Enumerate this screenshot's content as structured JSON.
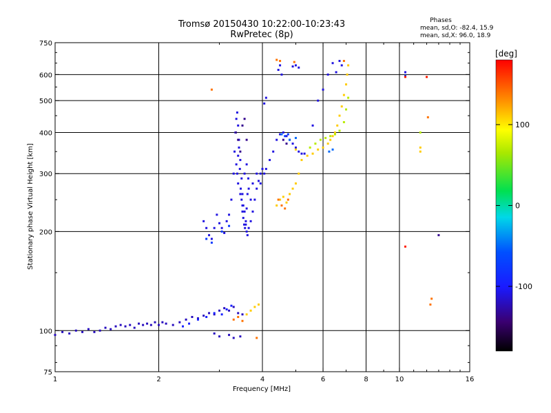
{
  "chart_data": {
    "type": "scatter",
    "title": "Tromsø 20150430 10:22:00-10:23:43",
    "subtitle": "RwPretec (8p)",
    "stats": {
      "heading": "Phases",
      "line1": "mean, sd,O: -82.4, 15.9",
      "line2": "mean, sd,X:  96.0, 18.9"
    },
    "xlabel": "Frequency [MHz]",
    "ylabel": "Stationary phase Virtual Height [km]",
    "xscale": "log",
    "yscale": "log",
    "xlim": [
      1,
      16
    ],
    "ylim": [
      75,
      750
    ],
    "xticks": [
      1,
      2,
      4,
      6,
      8,
      10,
      16
    ],
    "xtick_labels": [
      "1",
      "2",
      "4",
      "6",
      "8",
      "10",
      "16"
    ],
    "xgrid": [
      2,
      4,
      6,
      8,
      10
    ],
    "yticks": [
      75,
      100,
      200,
      300,
      400,
      500,
      600,
      750
    ],
    "ytick_labels": [
      "75",
      "100",
      "200",
      "300",
      "400",
      "500",
      "600",
      "750"
    ],
    "ygrid": [
      100,
      200,
      300,
      400,
      500,
      600
    ],
    "colorbar": {
      "label": "[deg]",
      "range": [
        -180,
        180
      ],
      "ticks": [
        100,
        0,
        -100
      ],
      "tick_labels": [
        "100",
        "0",
        "-100"
      ]
    },
    "series": [
      {
        "phase": -120,
        "points": [
          [
            1.0,
            97
          ],
          [
            1.05,
            99
          ],
          [
            1.1,
            98
          ],
          [
            1.15,
            100
          ],
          [
            1.2,
            99
          ],
          [
            1.25,
            101
          ],
          [
            1.3,
            99
          ],
          [
            1.35,
            100
          ],
          [
            1.4,
            102
          ],
          [
            1.45,
            101
          ],
          [
            1.5,
            103
          ],
          [
            1.55,
            104
          ],
          [
            1.6,
            103
          ],
          [
            1.65,
            104
          ],
          [
            1.7,
            102
          ],
          [
            1.75,
            105
          ],
          [
            1.8,
            104
          ],
          [
            1.85,
            105
          ],
          [
            1.9,
            104
          ],
          [
            1.95,
            106
          ],
          [
            2.0,
            104
          ],
          [
            2.05,
            106
          ],
          [
            2.1,
            105
          ],
          [
            2.2,
            104
          ],
          [
            2.3,
            106
          ],
          [
            2.4,
            108
          ],
          [
            2.5,
            110
          ],
          [
            2.6,
            109
          ],
          [
            2.7,
            111
          ],
          [
            2.8,
            113
          ],
          [
            2.9,
            112
          ],
          [
            3.0,
            115
          ],
          [
            3.1,
            117
          ],
          [
            3.2,
            115
          ],
          [
            3.3,
            118
          ],
          [
            3.4,
            113
          ],
          [
            3.5,
            112
          ],
          [
            2.9,
            98
          ],
          [
            3.0,
            96
          ],
          [
            3.2,
            97
          ],
          [
            3.3,
            95
          ],
          [
            3.45,
            96
          ]
        ]
      },
      {
        "phase": -95,
        "points": [
          [
            2.6,
            108
          ],
          [
            2.75,
            110
          ],
          [
            2.9,
            113
          ],
          [
            3.05,
            112
          ],
          [
            3.15,
            116
          ],
          [
            3.25,
            119
          ],
          [
            2.35,
            103
          ],
          [
            2.45,
            105
          ]
        ]
      },
      {
        "phase": -110,
        "points": [
          [
            2.7,
            215
          ],
          [
            2.75,
            205
          ],
          [
            2.8,
            195
          ],
          [
            2.85,
            190
          ],
          [
            2.9,
            205
          ],
          [
            2.95,
            225
          ],
          [
            3.0,
            212
          ],
          [
            3.05,
            205
          ],
          [
            3.1,
            198
          ],
          [
            3.15,
            215
          ],
          [
            3.2,
            225
          ],
          [
            3.25,
            250
          ],
          [
            3.3,
            300
          ],
          [
            3.32,
            350
          ],
          [
            3.34,
            400
          ],
          [
            3.36,
            440
          ],
          [
            3.38,
            460
          ],
          [
            3.4,
            420
          ],
          [
            3.42,
            380
          ],
          [
            3.45,
            330
          ],
          [
            3.48,
            290
          ],
          [
            3.5,
            260
          ],
          [
            3.52,
            240
          ],
          [
            3.55,
            230
          ],
          [
            3.58,
            210
          ],
          [
            3.6,
            200
          ],
          [
            3.62,
            195
          ],
          [
            3.65,
            205
          ],
          [
            3.7,
            215
          ],
          [
            3.75,
            230
          ],
          [
            3.8,
            250
          ],
          [
            3.85,
            270
          ],
          [
            3.9,
            285
          ],
          [
            3.95,
            300
          ],
          [
            4.0,
            310
          ],
          [
            4.05,
            300
          ],
          [
            4.1,
            310
          ],
          [
            4.2,
            330
          ],
          [
            4.3,
            350
          ],
          [
            4.4,
            380
          ],
          [
            4.5,
            395
          ],
          [
            4.6,
            400
          ],
          [
            4.7,
            390
          ],
          [
            4.8,
            380
          ],
          [
            4.9,
            370
          ],
          [
            5.0,
            360
          ],
          [
            5.1,
            350
          ],
          [
            5.2,
            345
          ],
          [
            5.3,
            345
          ],
          [
            3.4,
            280
          ],
          [
            3.45,
            260
          ],
          [
            3.5,
            240
          ],
          [
            3.55,
            300
          ],
          [
            3.6,
            320
          ],
          [
            3.65,
            270
          ],
          [
            3.7,
            250
          ],
          [
            3.75,
            280
          ],
          [
            3.85,
            300
          ],
          [
            3.95,
            280
          ],
          [
            4.05,
            490
          ],
          [
            4.1,
            510
          ],
          [
            4.45,
            620
          ],
          [
            4.5,
            640
          ],
          [
            4.55,
            600
          ],
          [
            4.9,
            635
          ],
          [
            5.0,
            640
          ],
          [
            5.1,
            630
          ],
          [
            5.6,
            420
          ],
          [
            5.8,
            500
          ],
          [
            6.0,
            540
          ],
          [
            6.2,
            600
          ],
          [
            6.4,
            650
          ],
          [
            6.55,
            610
          ],
          [
            6.7,
            660
          ],
          [
            6.8,
            640
          ],
          [
            10.4,
            610
          ],
          [
            3.36,
            320
          ],
          [
            3.38,
            300
          ],
          [
            3.4,
            340
          ],
          [
            3.42,
            360
          ],
          [
            3.44,
            310
          ],
          [
            3.46,
            270
          ],
          [
            3.48,
            250
          ],
          [
            3.5,
            230
          ],
          [
            3.52,
            220
          ],
          [
            3.54,
            210
          ],
          [
            3.56,
            205
          ],
          [
            3.58,
            215
          ],
          [
            3.6,
            235
          ],
          [
            3.62,
            260
          ],
          [
            3.64,
            290
          ]
        ]
      },
      {
        "phase": -135,
        "points": [
          [
            3.35,
            400
          ],
          [
            3.4,
            380
          ],
          [
            3.45,
            350
          ],
          [
            3.5,
            420
          ],
          [
            3.55,
            440
          ],
          [
            3.6,
            380
          ],
          [
            4.6,
            380
          ],
          [
            4.7,
            370
          ],
          [
            13.0,
            195
          ]
        ]
      },
      {
        "phase": -75,
        "points": [
          [
            2.75,
            190
          ],
          [
            2.85,
            185
          ],
          [
            3.05,
            200
          ],
          [
            3.2,
            208
          ],
          [
            4.65,
            390
          ],
          [
            4.75,
            395
          ],
          [
            10.4,
            595
          ]
        ]
      },
      {
        "phase": -50,
        "points": [
          [
            4.55,
            395
          ],
          [
            4.8,
            380
          ],
          [
            5.0,
            385
          ],
          [
            6.25,
            350
          ],
          [
            6.4,
            355
          ]
        ]
      },
      {
        "phase": 110,
        "points": [
          [
            4.4,
            240
          ],
          [
            4.5,
            250
          ],
          [
            4.6,
            255
          ],
          [
            4.7,
            245
          ],
          [
            4.8,
            260
          ],
          [
            4.9,
            270
          ],
          [
            5.0,
            280
          ],
          [
            5.1,
            300
          ],
          [
            5.2,
            330
          ],
          [
            5.4,
            340
          ],
          [
            5.6,
            345
          ],
          [
            5.8,
            355
          ],
          [
            6.0,
            360
          ],
          [
            6.2,
            370
          ],
          [
            6.3,
            380
          ],
          [
            6.4,
            390
          ],
          [
            6.5,
            400
          ],
          [
            6.6,
            420
          ],
          [
            6.7,
            450
          ],
          [
            6.8,
            480
          ],
          [
            6.9,
            520
          ],
          [
            7.0,
            560
          ],
          [
            7.05,
            600
          ],
          [
            7.1,
            640
          ],
          [
            3.9,
            120
          ],
          [
            3.8,
            118
          ],
          [
            3.7,
            115
          ],
          [
            3.6,
            112
          ],
          [
            11.5,
            360
          ],
          [
            11.5,
            350
          ],
          [
            5.0,
            355
          ]
        ]
      },
      {
        "phase": 140,
        "points": [
          [
            4.45,
            250
          ],
          [
            4.55,
            240
          ],
          [
            4.65,
            235
          ],
          [
            4.75,
            250
          ],
          [
            3.3,
            108
          ],
          [
            3.4,
            110
          ],
          [
            3.5,
            107
          ],
          [
            3.85,
            95
          ],
          [
            4.4,
            665
          ],
          [
            4.5,
            660
          ],
          [
            4.95,
            655
          ],
          [
            6.9,
            660
          ],
          [
            2.85,
            540
          ],
          [
            12.1,
            445
          ],
          [
            12.4,
            125
          ],
          [
            12.3,
            120
          ]
        ]
      },
      {
        "phase": 70,
        "points": [
          [
            5.5,
            360
          ],
          [
            5.7,
            370
          ],
          [
            5.9,
            380
          ],
          [
            6.1,
            385
          ],
          [
            6.3,
            390
          ],
          [
            6.5,
            395
          ],
          [
            6.7,
            405
          ],
          [
            6.9,
            430
          ],
          [
            7.0,
            470
          ],
          [
            7.1,
            510
          ],
          [
            11.5,
            400
          ]
        ]
      },
      {
        "phase": 170,
        "points": [
          [
            10.4,
            180
          ],
          [
            10.4,
            590
          ],
          [
            12.0,
            590
          ]
        ]
      }
    ]
  }
}
